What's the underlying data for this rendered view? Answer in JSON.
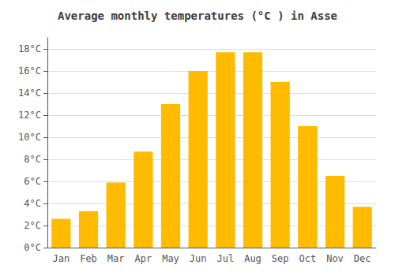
{
  "chart_data": {
    "type": "bar",
    "title": "Average monthly temperatures (°C ) in Asse",
    "categories": [
      "Jan",
      "Feb",
      "Mar",
      "Apr",
      "May",
      "Jun",
      "Jul",
      "Aug",
      "Sep",
      "Oct",
      "Nov",
      "Dec"
    ],
    "values": [
      2.6,
      3.3,
      5.9,
      8.7,
      13.0,
      16.0,
      17.7,
      17.7,
      15.0,
      11.0,
      6.5,
      3.7
    ],
    "color": "#FFBB00",
    "ylim": [
      0,
      19
    ],
    "yticks": [
      {
        "value": 0,
        "label": "0°C"
      },
      {
        "value": 2,
        "label": "2°C"
      },
      {
        "value": 4,
        "label": "4°C"
      },
      {
        "value": 6,
        "label": "6°C"
      },
      {
        "value": 8,
        "label": "8°C"
      },
      {
        "value": 10,
        "label": "10°C"
      },
      {
        "value": 12,
        "label": "12°C"
      },
      {
        "value": 14,
        "label": "14°C"
      },
      {
        "value": 16,
        "label": "16°C"
      },
      {
        "value": 18,
        "label": "18°C"
      }
    ],
    "grid": true
  }
}
